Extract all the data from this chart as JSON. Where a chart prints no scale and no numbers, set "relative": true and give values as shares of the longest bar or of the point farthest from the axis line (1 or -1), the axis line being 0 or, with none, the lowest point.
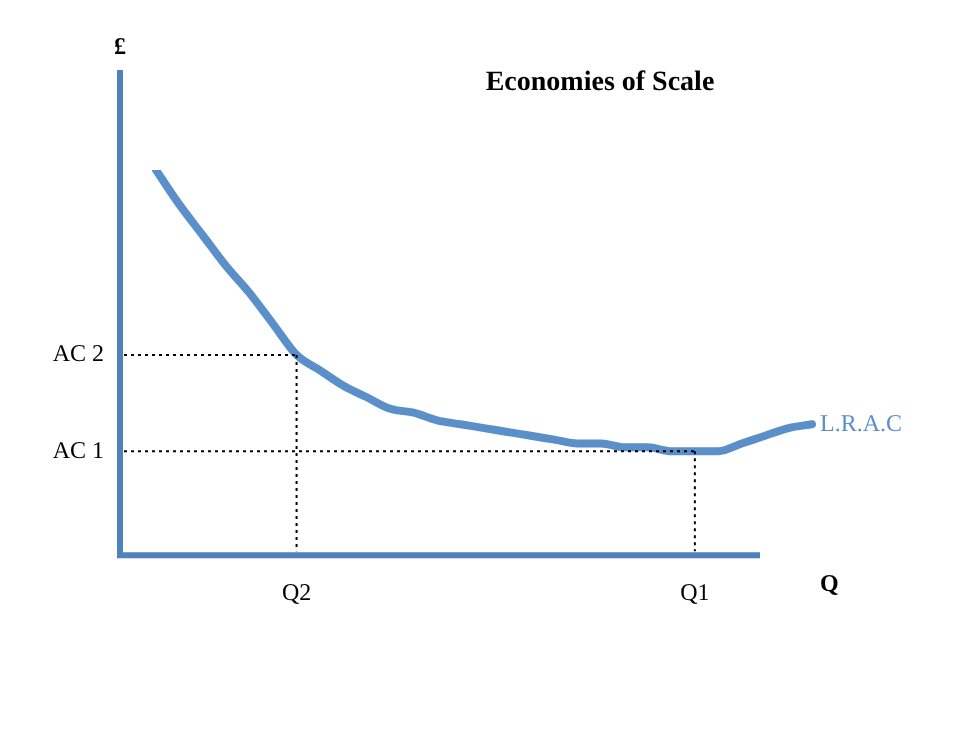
{
  "chart_data": {
    "type": "line",
    "title": "Economies of Scale",
    "xlabel": "Q",
    "ylabel": "£",
    "relative": true,
    "grid": false,
    "legend": false,
    "marker": "none",
    "line_style": "solid",
    "categories": [
      null,
      null,
      null,
      null,
      null,
      null,
      "Q2",
      null,
      null,
      null,
      null,
      null,
      null,
      null,
      null,
      null,
      null,
      null,
      null,
      null,
      null,
      null,
      null,
      "Q1",
      null,
      null,
      null,
      null,
      null
    ],
    "series": [
      {
        "name": "L.R.A.C",
        "color": "#5b8fc9",
        "values": [
          1,
          0.91,
          0.83,
          0.75,
          0.68,
          0.6,
          0.52,
          0.48,
          0.44,
          0.41,
          0.38,
          0.37,
          0.35,
          0.34,
          0.33,
          0.32,
          0.31,
          0.3,
          0.29,
          0.29,
          0.28,
          0.28,
          0.27,
          0.27,
          0.27,
          0.29,
          0.31,
          0.33,
          0.34
        ]
      }
    ],
    "ref_lines": [
      {
        "axis": "x",
        "value": "Q2",
        "color": "#000000",
        "line_style": "dotted"
      },
      {
        "axis": "x",
        "value": "Q1",
        "color": "#000000",
        "line_style": "dotted"
      },
      {
        "axis": "y",
        "value": 0.52,
        "label": "AC 2",
        "color": "#000000",
        "line_style": "dotted"
      },
      {
        "axis": "y",
        "value": 0.27,
        "label": "AC 1",
        "color": "#000000",
        "line_style": "dotted"
      }
    ]
  }
}
